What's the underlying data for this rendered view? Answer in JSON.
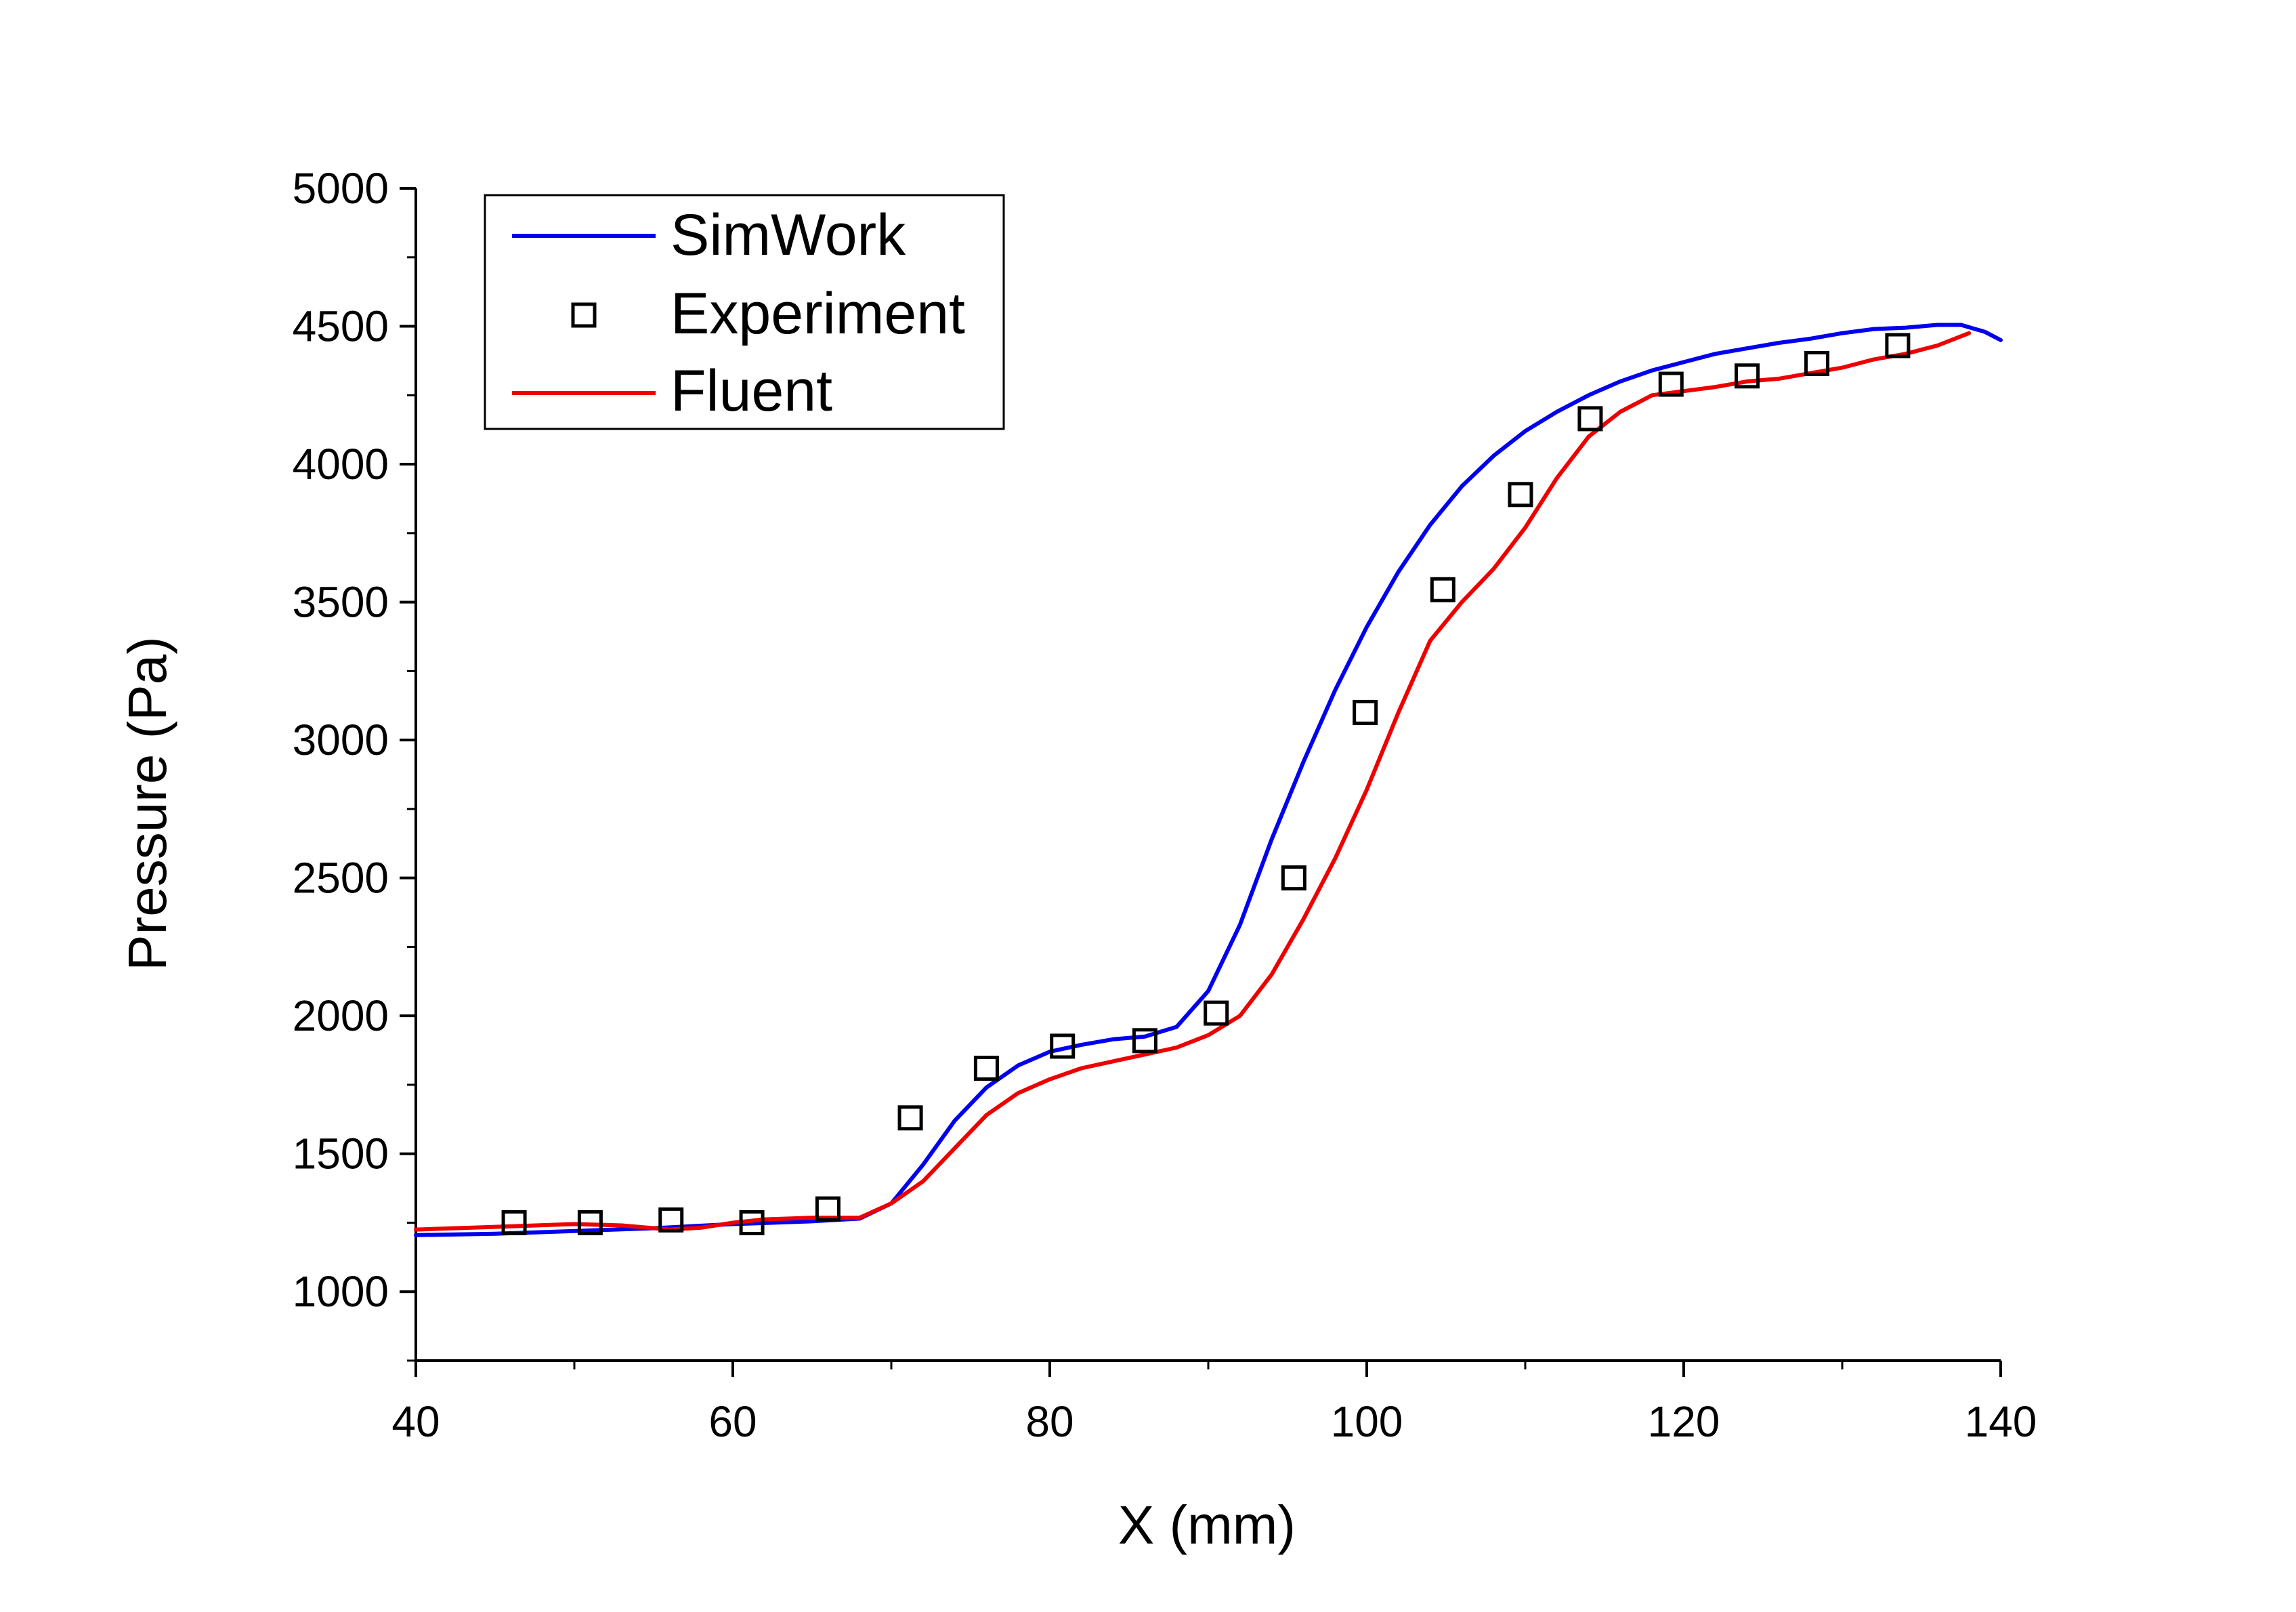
{
  "chart_data": {
    "type": "line",
    "xlabel": "X (mm)",
    "ylabel": "Pressure (Pa)",
    "xlim": [
      40,
      140
    ],
    "ylim": [
      750,
      5000
    ],
    "x_ticks": [
      40,
      60,
      80,
      100,
      120,
      140
    ],
    "x_tick_labels": [
      "40",
      "60",
      "80",
      "100",
      "120",
      "140"
    ],
    "y_ticks": [
      1000,
      1500,
      2000,
      2500,
      3000,
      3500,
      4000,
      4500,
      5000
    ],
    "y_tick_labels": [
      "1000",
      "1500",
      "2000",
      "2500",
      "3000",
      "3500",
      "4000",
      "4500",
      "5000"
    ],
    "grid": false,
    "legend_position": "top-left",
    "series": [
      {
        "name": "SimWork",
        "style": "line",
        "color": "#0000ee",
        "points": [
          [
            40,
            1205
          ],
          [
            45,
            1210
          ],
          [
            50,
            1220
          ],
          [
            55,
            1230
          ],
          [
            60,
            1245
          ],
          [
            65,
            1255
          ],
          [
            68,
            1265
          ],
          [
            70,
            1320
          ],
          [
            72,
            1460
          ],
          [
            74,
            1620
          ],
          [
            76,
            1740
          ],
          [
            78,
            1820
          ],
          [
            80,
            1870
          ],
          [
            82,
            1895
          ],
          [
            84,
            1915
          ],
          [
            86,
            1925
          ],
          [
            88,
            1960
          ],
          [
            90,
            2090
          ],
          [
            92,
            2330
          ],
          [
            94,
            2640
          ],
          [
            96,
            2920
          ],
          [
            98,
            3180
          ],
          [
            100,
            3410
          ],
          [
            102,
            3610
          ],
          [
            104,
            3780
          ],
          [
            106,
            3920
          ],
          [
            108,
            4030
          ],
          [
            110,
            4120
          ],
          [
            112,
            4190
          ],
          [
            114,
            4250
          ],
          [
            116,
            4300
          ],
          [
            118,
            4340
          ],
          [
            120,
            4370
          ],
          [
            122,
            4400
          ],
          [
            124,
            4420
          ],
          [
            126,
            4440
          ],
          [
            128,
            4455
          ],
          [
            130,
            4475
          ],
          [
            132,
            4490
          ],
          [
            134,
            4495
          ],
          [
            136,
            4505
          ],
          [
            137.5,
            4505
          ],
          [
            139,
            4480
          ],
          [
            140,
            4450
          ]
        ]
      },
      {
        "name": "Experiment",
        "style": "markers",
        "marker": "square",
        "color": "#000000",
        "points": [
          [
            46.2,
            1250
          ],
          [
            51,
            1250
          ],
          [
            56.1,
            1260
          ],
          [
            61.2,
            1250
          ],
          [
            66,
            1300
          ],
          [
            71.2,
            1630
          ],
          [
            76,
            1810
          ],
          [
            80.8,
            1890
          ],
          [
            86,
            1910
          ],
          [
            90.5,
            2010
          ],
          [
            95.4,
            2500
          ],
          [
            99.9,
            3100
          ],
          [
            104.8,
            3545
          ],
          [
            109.7,
            3890
          ],
          [
            114.1,
            4165
          ],
          [
            119.2,
            4290
          ],
          [
            124,
            4320
          ],
          [
            128.4,
            4365
          ],
          [
            133.5,
            4430
          ]
        ]
      },
      {
        "name": "Fluent",
        "style": "line",
        "color": "#ee0000",
        "points": [
          [
            40,
            1225
          ],
          [
            45,
            1235
          ],
          [
            50,
            1245
          ],
          [
            53,
            1240
          ],
          [
            56,
            1225
          ],
          [
            58,
            1232
          ],
          [
            60,
            1250
          ],
          [
            62,
            1262
          ],
          [
            65,
            1268
          ],
          [
            68,
            1268
          ],
          [
            70,
            1320
          ],
          [
            72,
            1400
          ],
          [
            74,
            1520
          ],
          [
            76,
            1640
          ],
          [
            78,
            1720
          ],
          [
            80,
            1770
          ],
          [
            82,
            1810
          ],
          [
            84,
            1835
          ],
          [
            86,
            1860
          ],
          [
            88,
            1885
          ],
          [
            90,
            1930
          ],
          [
            92,
            2000
          ],
          [
            94,
            2150
          ],
          [
            96,
            2350
          ],
          [
            98,
            2570
          ],
          [
            100,
            2820
          ],
          [
            102,
            3100
          ],
          [
            104,
            3360
          ],
          [
            106,
            3500
          ],
          [
            108,
            3620
          ],
          [
            110,
            3770
          ],
          [
            112,
            3950
          ],
          [
            114,
            4100
          ],
          [
            116,
            4190
          ],
          [
            118,
            4250
          ],
          [
            120,
            4265
          ],
          [
            122,
            4280
          ],
          [
            124,
            4300
          ],
          [
            126,
            4310
          ],
          [
            128,
            4330
          ],
          [
            130,
            4350
          ],
          [
            132,
            4380
          ],
          [
            134,
            4400
          ],
          [
            136,
            4430
          ],
          [
            138,
            4475
          ]
        ]
      }
    ]
  }
}
